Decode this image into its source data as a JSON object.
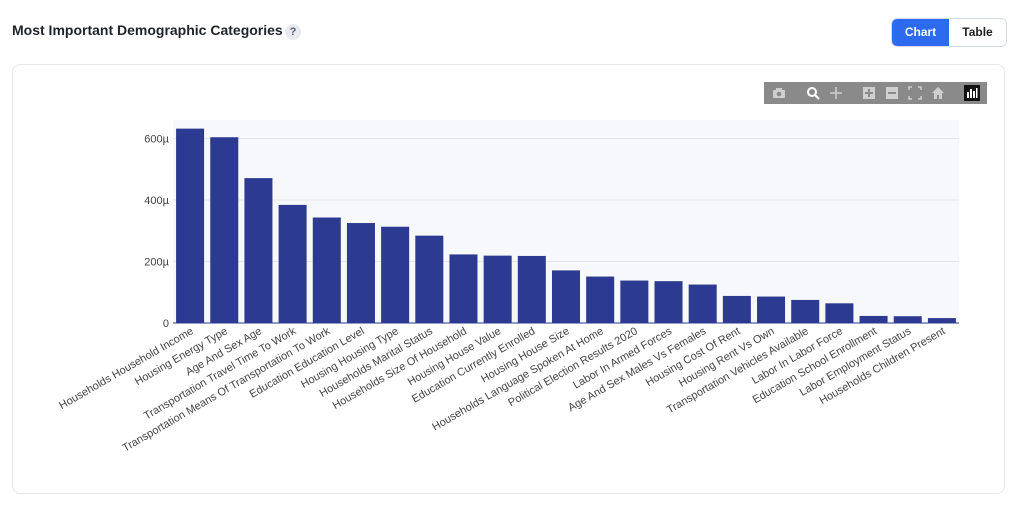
{
  "header": {
    "title": "Most Important Demographic Categories",
    "help_glyph": "?",
    "toggle": {
      "chart_label": "Chart",
      "table_label": "Table",
      "active": "Chart"
    }
  },
  "modebar": {
    "icons": [
      "camera-icon",
      "zoom-icon",
      "pan-icon",
      "zoom-in-icon",
      "zoom-out-icon",
      "autoscale-icon",
      "reset-axes-icon",
      "plotly-logo-icon"
    ]
  },
  "colors": {
    "bar": "#2d3a91",
    "plot_bg": "#f7f8fc",
    "accent": "#2c6bf0",
    "grid": "#e4e6ee"
  },
  "chart_data": {
    "type": "bar",
    "title": "",
    "xlabel": "",
    "ylabel": "",
    "ylim": [
      0,
      0.00066
    ],
    "yticks": [
      0,
      0.0002,
      0.0004,
      0.0006
    ],
    "ytick_labels": [
      "0",
      "200µ",
      "400µ",
      "600µ"
    ],
    "grid": true,
    "categories": [
      "Households Household Income",
      "Housing Energy Type",
      "Age And Sex Age",
      "Transportation Travel Time To Work",
      "Transportation Means Of Transportation To Work",
      "Education Education Level",
      "Housing Housing Type",
      "Households Marital Status",
      "Households Size Of Household",
      "Housing House Value",
      "Education Currently Enrolled",
      "Housing House Size",
      "Households Language Spoken At Home",
      "Political Election Results 2020",
      "Labor In Armed Forces",
      "Age And Sex Males Vs Females",
      "Housing Cost Of Rent",
      "Housing Rent Vs Own",
      "Transportation Vehicles Available",
      "Labor In Labor Force",
      "Education School Enrollment",
      "Labor Employment Status",
      "Households Children Present"
    ],
    "values": [
      0.000632,
      0.000604,
      0.000471,
      0.000384,
      0.000343,
      0.000325,
      0.000313,
      0.000284,
      0.000223,
      0.000219,
      0.000218,
      0.000171,
      0.000151,
      0.000138,
      0.000136,
      0.000125,
      8.8e-05,
      8.6e-05,
      7.5e-05,
      6.4e-05,
      2.3e-05,
      2.2e-05,
      1.6e-05
    ]
  }
}
